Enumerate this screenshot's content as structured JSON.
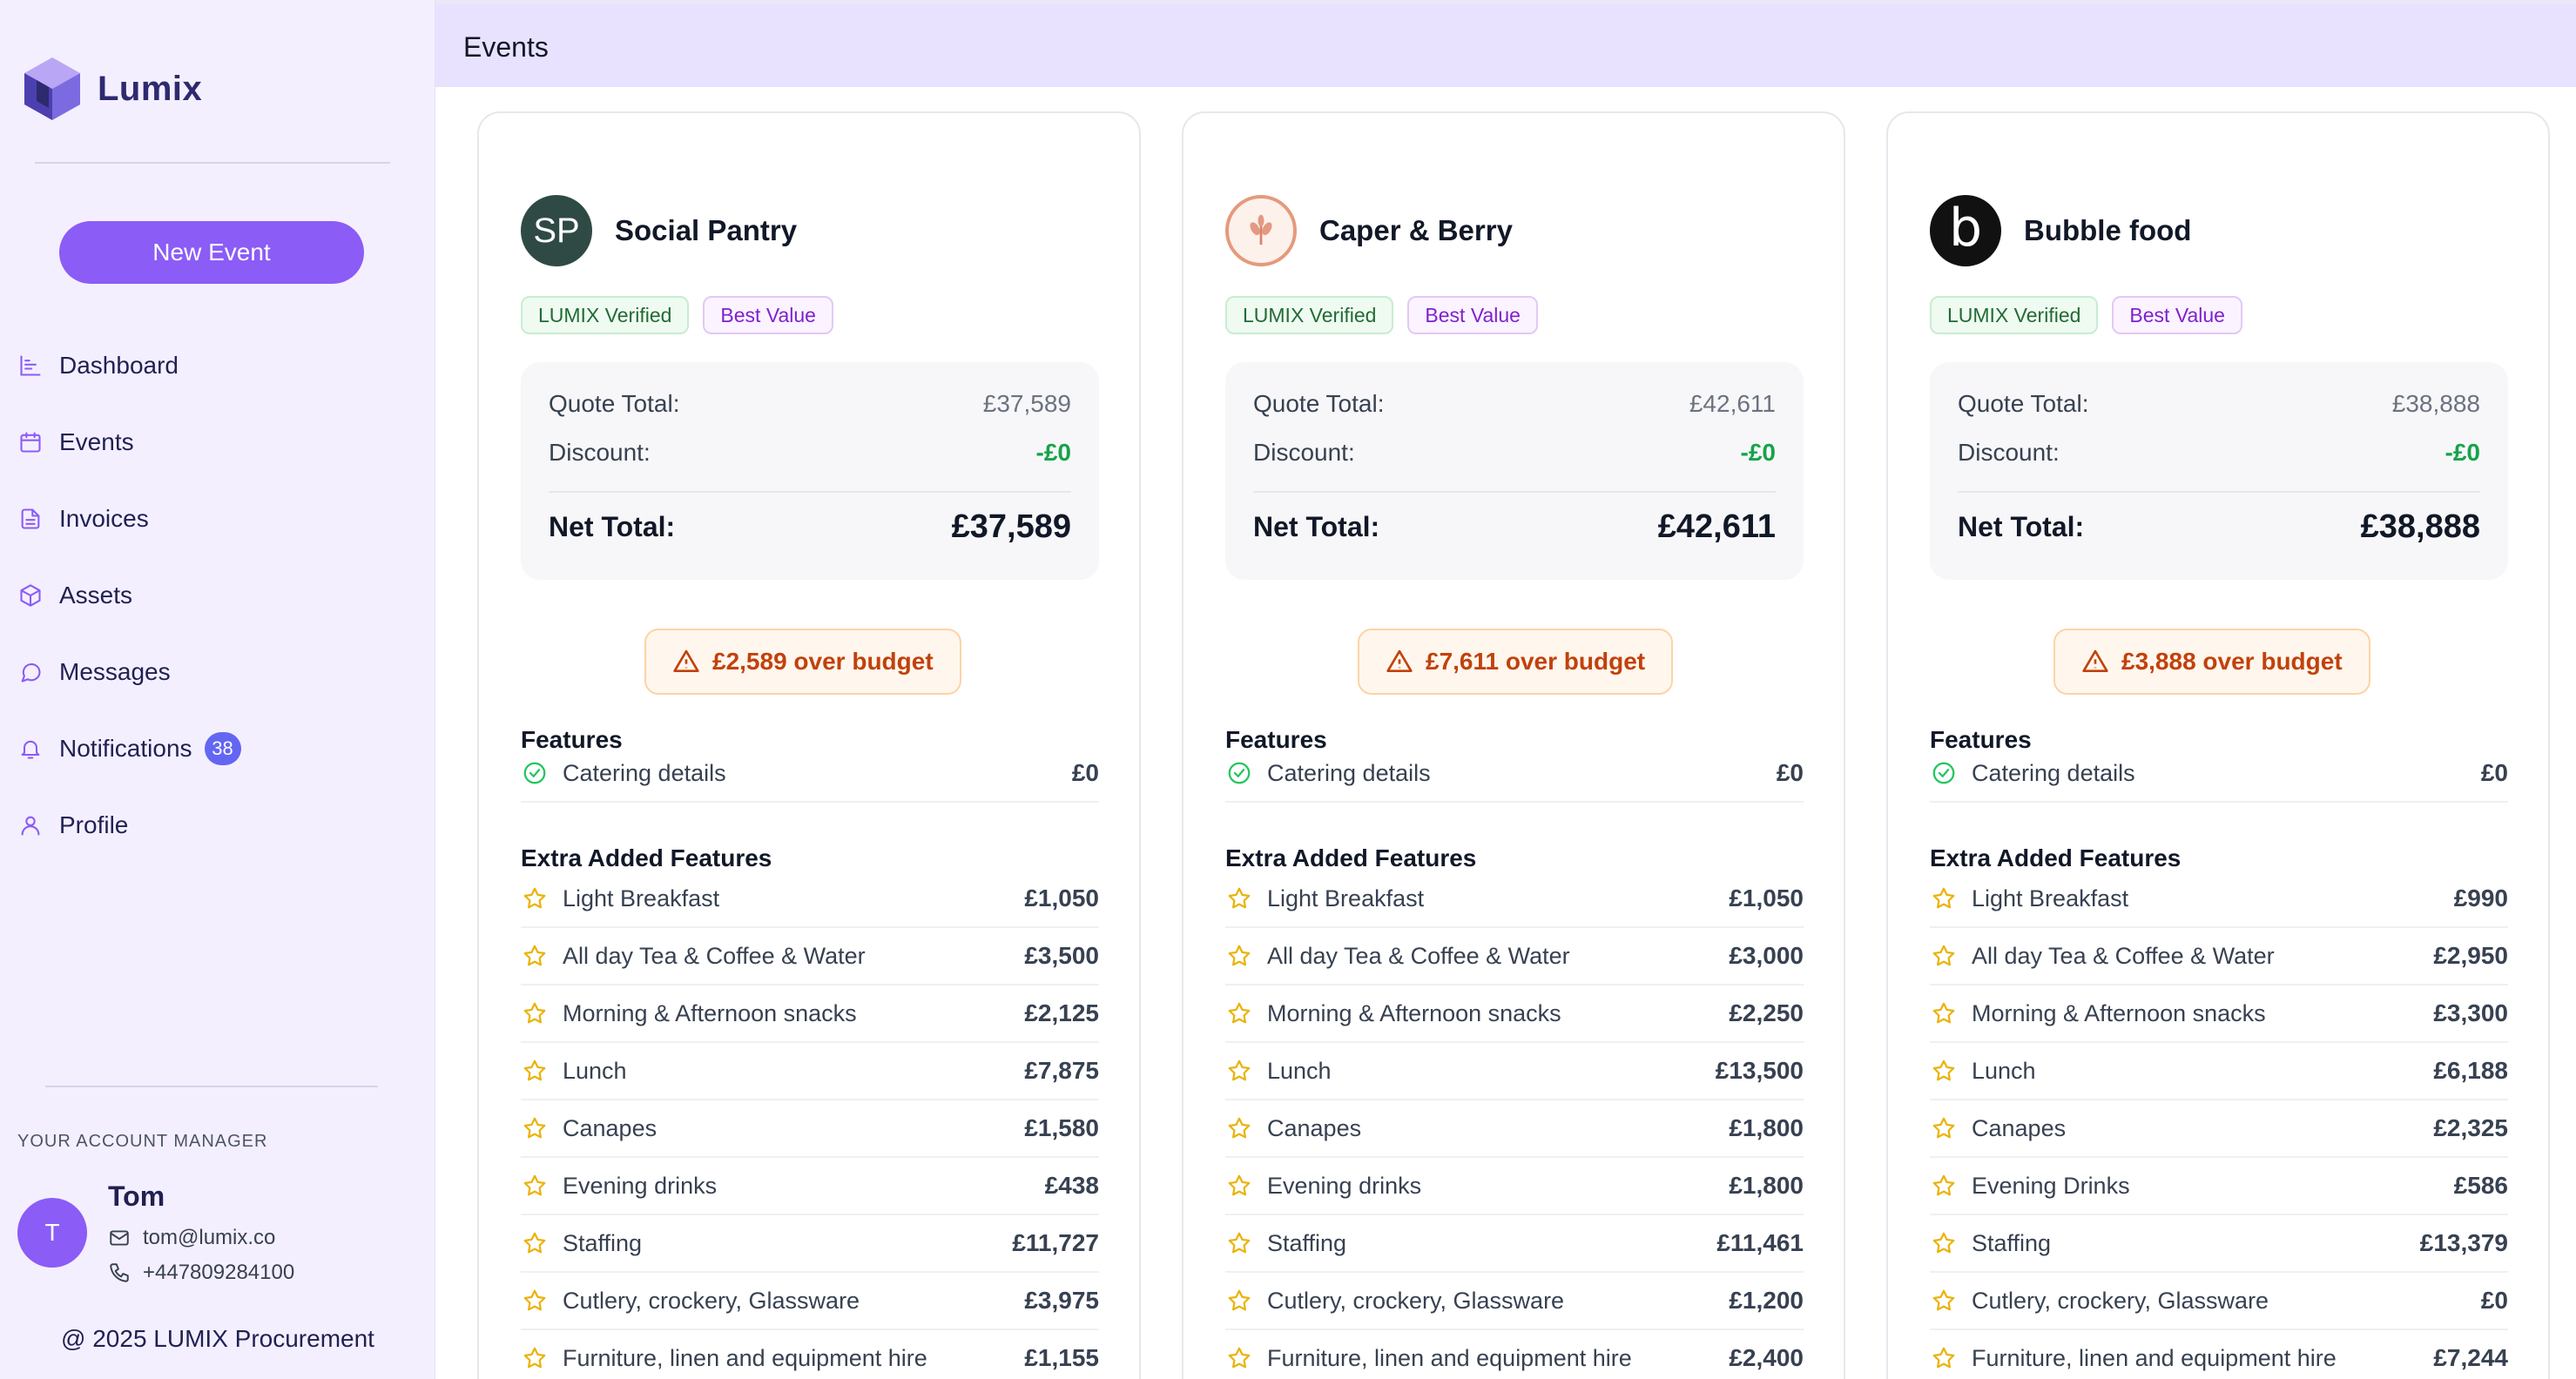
{
  "app": {
    "name": "Lumix"
  },
  "sidebar": {
    "new_event_label": "New Event",
    "nav": [
      {
        "label": "Dashboard",
        "icon": "chart-icon"
      },
      {
        "label": "Events",
        "icon": "calendar-icon"
      },
      {
        "label": "Invoices",
        "icon": "document-icon"
      },
      {
        "label": "Assets",
        "icon": "cube-icon"
      },
      {
        "label": "Messages",
        "icon": "chat-icon"
      },
      {
        "label": "Notifications",
        "icon": "bell-icon",
        "badge": "38"
      },
      {
        "label": "Profile",
        "icon": "user-icon"
      }
    ],
    "account_manager": {
      "title": "YOUR ACCOUNT MANAGER",
      "initial": "T",
      "name": "Tom",
      "email": "tom@lumix.co",
      "phone": "+447809284100"
    },
    "footer": "@ 2025 LUMIX Procurement"
  },
  "header": {
    "title": "Events"
  },
  "labels": {
    "quote_total": "Quote Total:",
    "discount": "Discount:",
    "net_total": "Net Total:",
    "features": "Features",
    "extra_features": "Extra Added Features"
  },
  "colors": {
    "accent": "#8b5cf6",
    "verified": "#16a34a",
    "value": "#7e22ce",
    "warning": "#c2410c",
    "star": "#eab308"
  },
  "vendors": [
    {
      "name": "Social Pantry",
      "logo_text": "SP",
      "tags": [
        "LUMIX Verified",
        "Best Value"
      ],
      "quote_total": "£37,589",
      "discount": "-£0",
      "net_total": "£37,589",
      "budget": "£2,589 over budget",
      "features": [
        {
          "name": "Catering details",
          "price": "£0"
        }
      ],
      "extras": [
        {
          "name": "Light Breakfast",
          "price": "£1,050"
        },
        {
          "name": "All day Tea & Coffee & Water",
          "price": "£3,500"
        },
        {
          "name": "Morning & Afternoon snacks",
          "price": "£2,125"
        },
        {
          "name": "Lunch",
          "price": "£7,875"
        },
        {
          "name": "Canapes",
          "price": "£1,580"
        },
        {
          "name": "Evening drinks",
          "price": "£438"
        },
        {
          "name": "Staffing",
          "price": "£11,727"
        },
        {
          "name": "Cutlery, crockery, Glassware",
          "price": "£3,975"
        },
        {
          "name": "Furniture, linen and equipment hire",
          "price": "£1,155"
        }
      ]
    },
    {
      "name": "Caper & Berry",
      "logo_text": "",
      "tags": [
        "LUMIX Verified",
        "Best Value"
      ],
      "quote_total": "£42,611",
      "discount": "-£0",
      "net_total": "£42,611",
      "budget": "£7,611 over budget",
      "features": [
        {
          "name": "Catering details",
          "price": "£0"
        }
      ],
      "extras": [
        {
          "name": "Light Breakfast",
          "price": "£1,050"
        },
        {
          "name": "All day Tea & Coffee & Water",
          "price": "£3,000"
        },
        {
          "name": "Morning & Afternoon snacks",
          "price": "£2,250"
        },
        {
          "name": "Lunch",
          "price": "£13,500"
        },
        {
          "name": "Canapes",
          "price": "£1,800"
        },
        {
          "name": "Evening drinks",
          "price": "£1,800"
        },
        {
          "name": "Staffing",
          "price": "£11,461"
        },
        {
          "name": "Cutlery, crockery, Glassware",
          "price": "£1,200"
        },
        {
          "name": "Furniture, linen and equipment hire",
          "price": "£2,400"
        }
      ]
    },
    {
      "name": "Bubble food",
      "logo_text": "b",
      "tags": [
        "LUMIX Verified",
        "Best Value"
      ],
      "quote_total": "£38,888",
      "discount": "-£0",
      "net_total": "£38,888",
      "budget": "£3,888 over budget",
      "features": [
        {
          "name": "Catering details",
          "price": "£0"
        }
      ],
      "extras": [
        {
          "name": "Light Breakfast",
          "price": "£990"
        },
        {
          "name": "All day Tea & Coffee & Water",
          "price": "£2,950"
        },
        {
          "name": "Morning & Afternoon snacks",
          "price": "£3,300"
        },
        {
          "name": "Lunch",
          "price": "£6,188"
        },
        {
          "name": "Canapes",
          "price": "£2,325"
        },
        {
          "name": "Evening Drinks",
          "price": "£586"
        },
        {
          "name": "Staffing",
          "price": "£13,379"
        },
        {
          "name": "Cutlery, crockery, Glassware",
          "price": "£0"
        },
        {
          "name": "Furniture, linen and equipment hire",
          "price": "£7,244"
        }
      ]
    }
  ]
}
